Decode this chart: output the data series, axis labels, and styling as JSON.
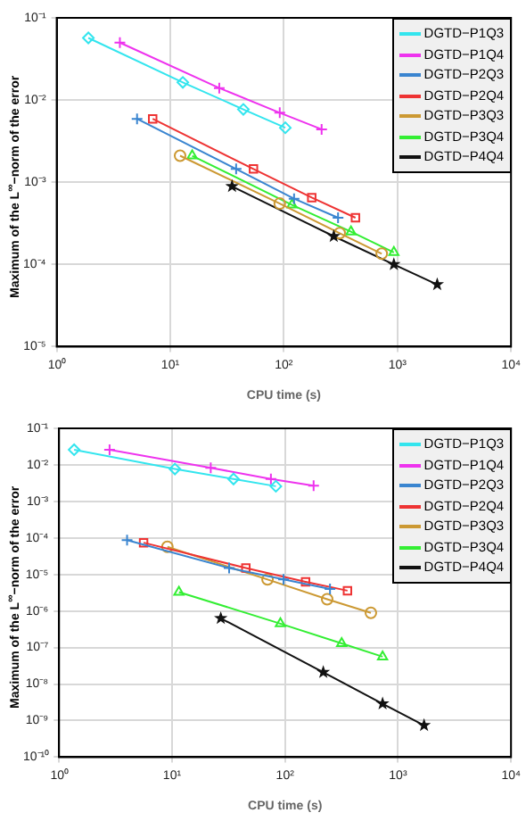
{
  "chart_data": [
    {
      "type": "line",
      "xlabel": "CPU time (s)",
      "ylabel": "Maximum of the L$^{∞}$−norm of the error",
      "log": "xy",
      "grid": true,
      "legend": "top right",
      "line_style": "solid",
      "xlim": [
        1,
        10000
      ],
      "xticks": [
        {
          "value": 1,
          "label": "10⁰"
        },
        {
          "value": 10,
          "label": "10¹"
        },
        {
          "value": 100,
          "label": "10²"
        },
        {
          "value": 1000,
          "label": "10³"
        },
        {
          "value": 10000,
          "label": "10⁴"
        }
      ],
      "ylim": [
        1e-05,
        0.1
      ],
      "yticks": [
        {
          "value": 1e-05,
          "label": "10⁻⁵"
        },
        {
          "value": 0.0001,
          "label": "10⁻⁴"
        },
        {
          "value": 0.001,
          "label": "10⁻³"
        },
        {
          "value": 0.01,
          "label": "10⁻²"
        },
        {
          "value": 0.1,
          "label": "10⁻¹"
        }
      ],
      "series": [
        {
          "name": "DGTD−P1Q3",
          "color": "#33e5ee",
          "marker": "diamond",
          "x": [
            1.9,
            12.9,
            44,
            103
          ],
          "values": [
            0.057,
            0.0164,
            0.0077,
            0.0046
          ]
        },
        {
          "name": "DGTD−P1Q4",
          "color": "#ee33ee",
          "marker": "cross",
          "x": [
            3.6,
            27,
            92,
            215
          ],
          "values": [
            0.05,
            0.014,
            0.007,
            0.0044
          ]
        },
        {
          "name": "DGTD−P2Q3",
          "color": "#3a85d0",
          "marker": "cross",
          "x": [
            5.1,
            38,
            123,
            300
          ],
          "values": [
            0.0059,
            0.00145,
            0.00063,
            0.00037
          ]
        },
        {
          "name": "DGTD−P2Q4",
          "color": "#ee3333",
          "marker": "square",
          "x": [
            7,
            54,
            176,
            427
          ],
          "values": [
            0.0059,
            0.00145,
            0.00065,
            0.00037
          ]
        },
        {
          "name": "DGTD−P3Q3",
          "color": "#cc9933",
          "marker": "circle",
          "x": [
            12.2,
            92,
            310,
            727
          ],
          "values": [
            0.0021,
            0.00055,
            0.00024,
            0.000135
          ]
        },
        {
          "name": "DGTD−P3Q4",
          "color": "#33ee33",
          "marker": "triangle",
          "x": [
            15.6,
            118,
            390,
            930
          ],
          "values": [
            0.0021,
            0.00053,
            0.00025,
            0.00014
          ]
        },
        {
          "name": "DGTD−P4Q4",
          "color": "#111111",
          "marker": "star",
          "x": [
            35,
            275,
            930,
            2240
          ],
          "values": [
            0.00089,
            0.00022,
            0.0001,
            5.7e-05
          ]
        }
      ]
    },
    {
      "type": "line",
      "xlabel": "CPU time (s)",
      "ylabel": "Maximum of the L$^{∞}$−norm of the error",
      "log": "xy",
      "grid": true,
      "legend": "top right",
      "line_style": "solid",
      "xlim": [
        1,
        10000
      ],
      "xticks": [
        {
          "value": 1,
          "label": "10⁰"
        },
        {
          "value": 10,
          "label": "10¹"
        },
        {
          "value": 100,
          "label": "10²"
        },
        {
          "value": 1000,
          "label": "10³"
        },
        {
          "value": 10000,
          "label": "10⁴"
        }
      ],
      "ylim": [
        1e-10,
        0.1
      ],
      "yticks": [
        {
          "value": 1e-10,
          "label": "10⁻¹⁰"
        },
        {
          "value": 1e-09,
          "label": "10⁻⁹"
        },
        {
          "value": 1e-08,
          "label": "10⁻⁸"
        },
        {
          "value": 1e-07,
          "label": "10⁻⁷"
        },
        {
          "value": 1e-06,
          "label": "10⁻⁶"
        },
        {
          "value": 1e-05,
          "label": "10⁻⁵"
        },
        {
          "value": 0.0001,
          "label": "10⁻⁴"
        },
        {
          "value": 0.001,
          "label": "10⁻³"
        },
        {
          "value": 0.01,
          "label": "10⁻²"
        },
        {
          "value": 0.1,
          "label": "10⁻¹"
        }
      ],
      "series": [
        {
          "name": "DGTD−P1Q3",
          "color": "#33e5ee",
          "marker": "diamond",
          "x": [
            1.36,
            10.6,
            35,
            83
          ],
          "values": [
            0.026,
            0.0077,
            0.0041,
            0.0026
          ]
        },
        {
          "name": "DGTD−P1Q4",
          "color": "#ee33ee",
          "marker": "cross",
          "x": [
            2.8,
            22,
            75,
            179
          ],
          "values": [
            0.026,
            0.0083,
            0.0041,
            0.0027
          ]
        },
        {
          "name": "DGTD−P2Q3",
          "color": "#3a85d0",
          "marker": "cross",
          "x": [
            4,
            32,
            97,
            250
          ],
          "values": [
            8.7e-05,
            1.5e-05,
            7.3e-06,
            4e-06
          ]
        },
        {
          "name": "DGTD−P2Q4",
          "color": "#ee3333",
          "marker": "square",
          "x": [
            5.6,
            45,
            152,
            357
          ],
          "values": [
            7.4e-05,
            1.5e-05,
            6.3e-06,
            3.6e-06
          ]
        },
        {
          "name": "DGTD−P3Q3",
          "color": "#cc9933",
          "marker": "circle",
          "x": [
            9.1,
            70,
            236,
            575
          ],
          "values": [
            5.7e-05,
            7.3e-06,
            2.1e-06,
            8.9e-07
          ]
        },
        {
          "name": "DGTD−P3Q4",
          "color": "#33ee33",
          "marker": "triangle",
          "x": [
            11.5,
            91,
            317,
            730
          ],
          "values": [
            3.3e-06,
            4.5e-07,
            1.3e-07,
            5.6e-08
          ]
        },
        {
          "name": "DGTD−P4Q4",
          "color": "#111111",
          "marker": "star",
          "x": [
            27,
            218,
            730,
            1700
          ],
          "values": [
            6.3e-07,
            2.1e-08,
            2.9e-09,
            7.4e-10
          ]
        }
      ]
    }
  ]
}
